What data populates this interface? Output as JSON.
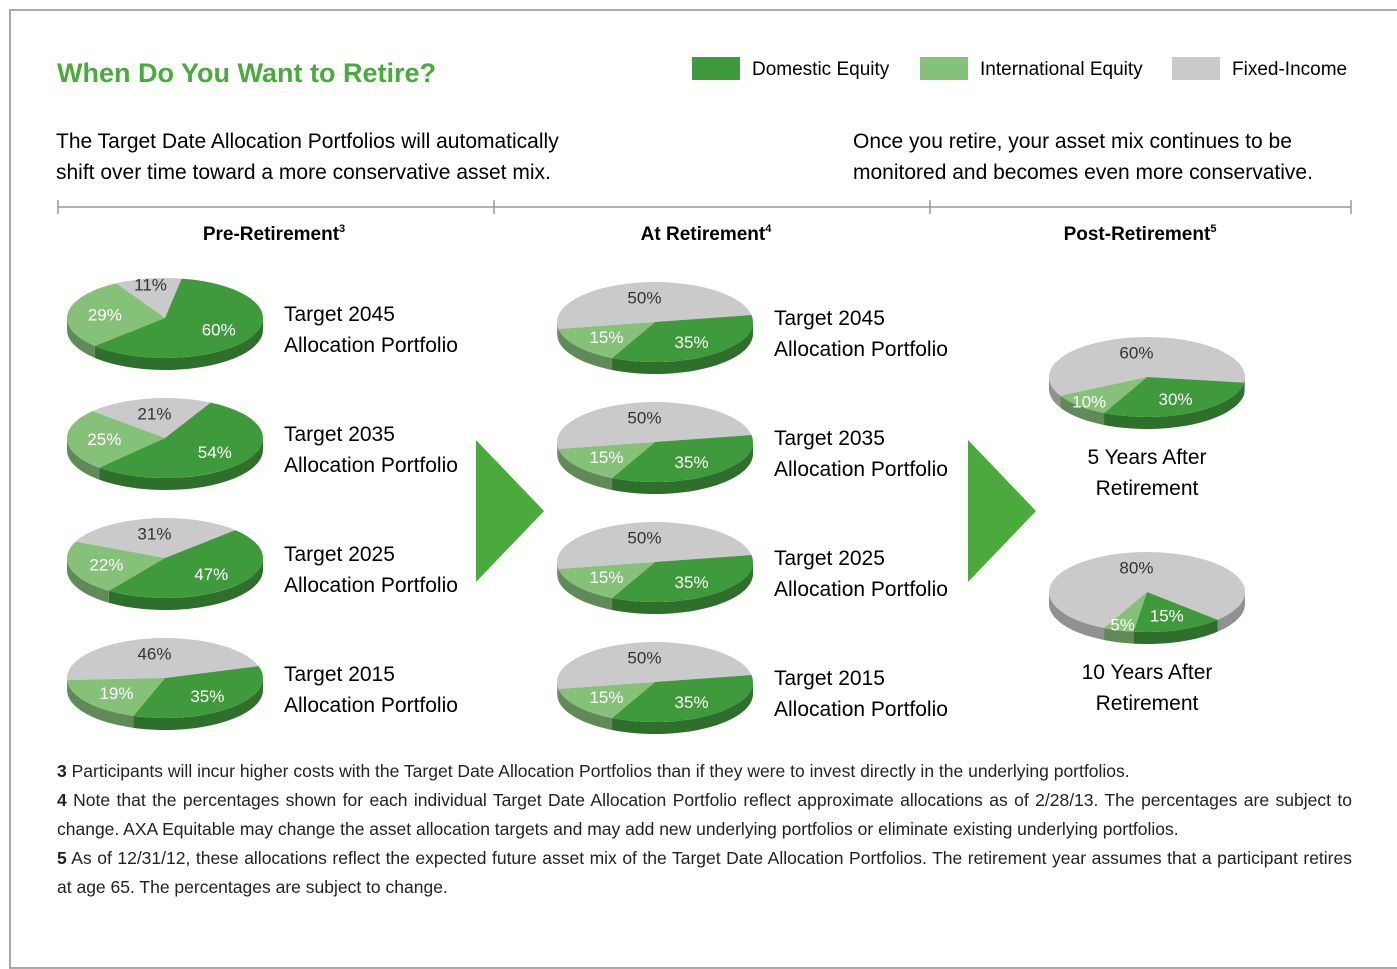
{
  "title": "When Do You Want to Retire?",
  "legend": {
    "labels": [
      "Domestic Equity",
      "International Equity",
      "Fixed-Income"
    ],
    "colors": [
      "#3f9a3c",
      "#86c17a",
      "#cacaca"
    ]
  },
  "intro": {
    "left": [
      "The Target Date Allocation Portfolios will automatically",
      "shift over time toward a more conservative asset mix."
    ],
    "right": [
      "Once you retire, your asset mix continues to be",
      "monitored and becomes even more conservative."
    ]
  },
  "sections": [
    {
      "text": "Pre-Retirement",
      "note": "3"
    },
    {
      "text": "At Retirement",
      "note": "4"
    },
    {
      "text": "Post-Retirement",
      "note": "5"
    }
  ],
  "chart_data": [
    {
      "type": "pie",
      "label": [
        "Target 2045",
        "Allocation Portfolio"
      ],
      "values": [
        60,
        29,
        11
      ],
      "value_labels": [
        "60%",
        "29%",
        "11%"
      ]
    },
    {
      "type": "pie",
      "label": [
        "Target 2035",
        "Allocation Portfolio"
      ],
      "values": [
        54,
        25,
        21
      ],
      "value_labels": [
        "54%",
        "25%",
        "21%"
      ]
    },
    {
      "type": "pie",
      "label": [
        "Target 2025",
        "Allocation Portfolio"
      ],
      "values": [
        47,
        22,
        31
      ],
      "value_labels": [
        "47%",
        "22%",
        "31%"
      ]
    },
    {
      "type": "pie",
      "label": [
        "Target 2015",
        "Allocation Portfolio"
      ],
      "values": [
        35,
        19,
        46
      ],
      "value_labels": [
        "35%",
        "19%",
        "46%"
      ]
    },
    {
      "type": "pie",
      "label": [
        "Target 2045",
        "Allocation Portfolio"
      ],
      "values": [
        35,
        15,
        50
      ],
      "value_labels": [
        "35%",
        "15%",
        "50%"
      ]
    },
    {
      "type": "pie",
      "label": [
        "Target 2035",
        "Allocation Portfolio"
      ],
      "values": [
        35,
        15,
        50
      ],
      "value_labels": [
        "35%",
        "15%",
        "50%"
      ]
    },
    {
      "type": "pie",
      "label": [
        "Target 2025",
        "Allocation Portfolio"
      ],
      "values": [
        35,
        15,
        50
      ],
      "value_labels": [
        "35%",
        "15%",
        "50%"
      ]
    },
    {
      "type": "pie",
      "label": [
        "Target 2015",
        "Allocation Portfolio"
      ],
      "values": [
        35,
        15,
        50
      ],
      "value_labels": [
        "35%",
        "15%",
        "50%"
      ]
    },
    {
      "type": "pie",
      "label": [
        "5 Years After",
        "Retirement"
      ],
      "values": [
        30,
        10,
        60
      ],
      "value_labels": [
        "30%",
        "10%",
        "60%"
      ]
    },
    {
      "type": "pie",
      "label": [
        "10 Years After",
        "Retirement"
      ],
      "values": [
        15,
        5,
        80
      ],
      "value_labels": [
        "15%",
        "5%",
        "80%"
      ]
    }
  ],
  "footnotes": [
    {
      "number": "3",
      "text": "Participants will incur higher costs with the Target Date Allocation Portfolios than if they were to invest directly in the underlying portfolios."
    },
    {
      "number": "4",
      "text": "Note that the percentages shown for each individual Target Date Allocation Portfolio reflect approximate allocations as of 2/28/13. The percentages are subject to change. AXA Equitable may change the asset allocation targets and may add new underlying portfolios or eliminate existing underlying portfolios."
    },
    {
      "number": "5",
      "text": "As of 12/31/12, these allocations reflect the expected future asset mix of the Target Date Allocation Portfolios. The retirement year assumes that a participant retires at age 65. The percentages are subject to change."
    }
  ]
}
